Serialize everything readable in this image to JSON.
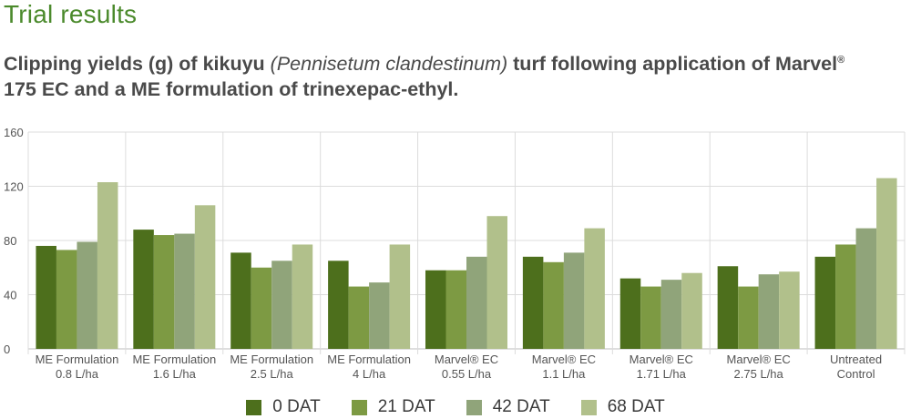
{
  "heading": "Trial results",
  "subtitle": {
    "part1": "Clipping yields (g) of kikuyu ",
    "italic": "(Pennisetum clandestinum)",
    "part2": " turf following application of Marvel",
    "reg": "®",
    "part3": " 175 EC and a ME formulation of trinexepac-ethyl."
  },
  "chart_data": {
    "type": "bar",
    "categories": [
      [
        "ME Formulation",
        "0.8 L/ha"
      ],
      [
        "ME Formulation",
        "1.6 L/ha"
      ],
      [
        "ME Formulation",
        "2.5 L/ha"
      ],
      [
        "ME Formulation",
        "4 L/ha"
      ],
      [
        "Marvel® EC",
        "0.55 L/ha"
      ],
      [
        "Marvel® EC",
        "1.1 L/ha"
      ],
      [
        "Marvel® EC",
        "1.71 L/ha"
      ],
      [
        "Marvel® EC",
        "2.75 L/ha"
      ],
      [
        "Untreated",
        "Control"
      ]
    ],
    "series": [
      {
        "name": "0 DAT",
        "color": "#4d6f1c",
        "values": [
          76,
          88,
          71,
          65,
          58,
          68,
          52,
          61,
          68
        ]
      },
      {
        "name": "21 DAT",
        "color": "#7d9a43",
        "values": [
          73,
          84,
          60,
          46,
          58,
          64,
          46,
          46,
          77
        ]
      },
      {
        "name": "42 DAT",
        "color": "#90a47a",
        "values": [
          79,
          85,
          65,
          49,
          68,
          71,
          51,
          55,
          89
        ]
      },
      {
        "name": "68 DAT",
        "color": "#b1c08b",
        "values": [
          123,
          106,
          77,
          77,
          98,
          89,
          56,
          57,
          126
        ]
      }
    ],
    "yticks": [
      "0",
      "40",
      "80",
      "120",
      "160"
    ],
    "ylim": [
      0,
      160
    ],
    "grid": true,
    "legend_position": "bottom-center"
  }
}
